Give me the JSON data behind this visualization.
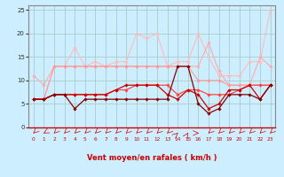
{
  "xlabel": "Vent moyen/en rafales ( km/h )",
  "bg_color": "#cceeff",
  "grid_color": "#aacccc",
  "x_values": [
    0,
    1,
    2,
    3,
    4,
    5,
    6,
    7,
    8,
    9,
    10,
    11,
    12,
    13,
    14,
    15,
    16,
    17,
    18,
    19,
    20,
    21,
    22,
    23
  ],
  "series": [
    {
      "y": [
        6,
        6,
        13,
        13,
        17,
        13,
        14,
        13,
        14,
        14,
        20,
        19,
        20,
        13,
        14,
        14,
        20,
        15,
        11,
        11,
        11,
        14,
        14,
        25
      ],
      "color": "#ffbbbb",
      "lw": 0.8,
      "marker": "D",
      "ms": 1.8
    },
    {
      "y": [
        11,
        9,
        13,
        13,
        13,
        13,
        13,
        13,
        13,
        13,
        13,
        13,
        13,
        13,
        13,
        13,
        13,
        18,
        12,
        9,
        9,
        9,
        15,
        13
      ],
      "color": "#ffaaaa",
      "lw": 0.8,
      "marker": "D",
      "ms": 1.8
    },
    {
      "y": [
        6,
        6,
        13,
        13,
        13,
        13,
        13,
        13,
        13,
        13,
        13,
        13,
        13,
        13,
        13,
        13,
        10,
        10,
        10,
        9,
        9,
        9,
        9,
        9
      ],
      "color": "#ff9999",
      "lw": 0.8,
      "marker": "D",
      "ms": 1.8
    },
    {
      "y": [
        6,
        6,
        7,
        7,
        7,
        7,
        7,
        7,
        8,
        8,
        9,
        9,
        9,
        9,
        7,
        8,
        8,
        7,
        7,
        7,
        8,
        9,
        9,
        9
      ],
      "color": "#ff4444",
      "lw": 0.9,
      "marker": "D",
      "ms": 1.8
    },
    {
      "y": [
        6,
        6,
        7,
        7,
        7,
        7,
        7,
        7,
        8,
        9,
        9,
        9,
        9,
        7,
        6,
        8,
        7,
        4,
        5,
        8,
        8,
        9,
        6,
        9
      ],
      "color": "#cc0000",
      "lw": 0.9,
      "marker": "D",
      "ms": 1.8
    },
    {
      "y": [
        6,
        6,
        7,
        7,
        4,
        6,
        6,
        6,
        6,
        6,
        6,
        6,
        6,
        6,
        13,
        13,
        5,
        3,
        4,
        7,
        7,
        7,
        6,
        9
      ],
      "color": "#880000",
      "lw": 0.9,
      "marker": "D",
      "ms": 1.8
    }
  ],
  "ylim": [
    0,
    26
  ],
  "xlim": [
    -0.5,
    23.5
  ],
  "yticks": [
    0,
    5,
    10,
    15,
    20,
    25
  ],
  "ytick_labels": [
    "0",
    "5",
    "10",
    "15",
    "20",
    "25"
  ],
  "xticks": [
    0,
    1,
    2,
    3,
    4,
    5,
    6,
    7,
    8,
    9,
    10,
    11,
    12,
    13,
    14,
    15,
    16,
    17,
    18,
    19,
    20,
    21,
    22,
    23
  ],
  "arrow_angles_deg": [
    225,
    210,
    225,
    225,
    225,
    225,
    225,
    225,
    225,
    225,
    225,
    225,
    225,
    225,
    45,
    60,
    0,
    225,
    225,
    225,
    225,
    225,
    225,
    225
  ]
}
